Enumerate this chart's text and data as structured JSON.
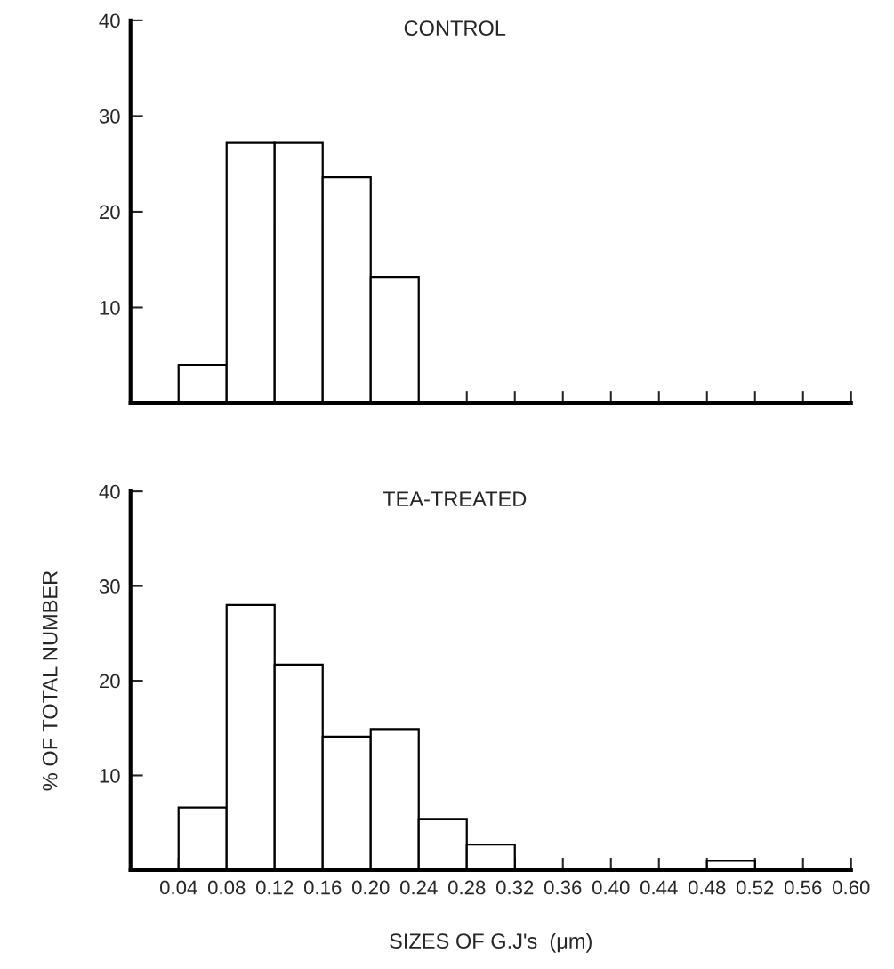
{
  "chart_data": [
    {
      "type": "histogram",
      "title": "CONTROL",
      "bins": [
        0.04,
        0.08,
        0.12,
        0.16,
        0.2,
        0.24
      ],
      "values": [
        4.0,
        27.2,
        27.2,
        23.6,
        13.2
      ],
      "color": "#ffffff",
      "xlim": [
        0,
        0.6
      ],
      "xticks": [
        {
          "value": 0.28,
          "label": null
        },
        {
          "value": 0.32,
          "label": null
        },
        {
          "value": 0.36,
          "label": null
        },
        {
          "value": 0.4,
          "label": null
        },
        {
          "value": 0.44,
          "label": null
        },
        {
          "value": 0.48,
          "label": null
        },
        {
          "value": 0.52,
          "label": null
        },
        {
          "value": 0.56,
          "label": null
        },
        {
          "value": 0.6,
          "label": null
        }
      ],
      "ylim": [
        0,
        40
      ],
      "yticks": [
        10,
        20,
        30,
        40
      ],
      "tick_labels": "y",
      "grid": false,
      "legend": false
    },
    {
      "type": "histogram",
      "title": "TEA-TREATED",
      "xlabel": "SIZES OF G.J's  (μm)",
      "ylabel": "% OF TOTAL NUMBER",
      "bins": [
        0.04,
        0.08,
        0.12,
        0.16,
        0.2,
        0.24,
        0.28,
        0.32,
        0.36,
        0.4,
        0.44,
        0.48,
        0.52
      ],
      "values": [
        6.6,
        28.0,
        21.7,
        14.1,
        14.9,
        5.4,
        2.7,
        0,
        0,
        0,
        0,
        1.0
      ],
      "color": "#ffffff",
      "xlim": [
        0,
        0.6
      ],
      "xticks": [
        {
          "value": 0.04,
          "label": "0.04"
        },
        {
          "value": 0.08,
          "label": "0.08"
        },
        {
          "value": 0.12,
          "label": "0.12"
        },
        {
          "value": 0.16,
          "label": "0.16"
        },
        {
          "value": 0.2,
          "label": "0.20"
        },
        {
          "value": 0.24,
          "label": "0.24"
        },
        {
          "value": 0.28,
          "label": "0.28"
        },
        {
          "value": 0.32,
          "label": "0.32"
        },
        {
          "value": 0.36,
          "label": "0.36"
        },
        {
          "value": 0.4,
          "label": "0.40"
        },
        {
          "value": 0.44,
          "label": "0.44"
        },
        {
          "value": 0.48,
          "label": "0.48"
        },
        {
          "value": 0.52,
          "label": "0.52"
        },
        {
          "value": 0.56,
          "label": "0.56"
        },
        {
          "value": 0.6,
          "label": "0.60"
        }
      ],
      "ylim": [
        0,
        40
      ],
      "yticks": [
        10,
        20,
        30,
        40
      ],
      "grid": false,
      "legend": false
    }
  ]
}
